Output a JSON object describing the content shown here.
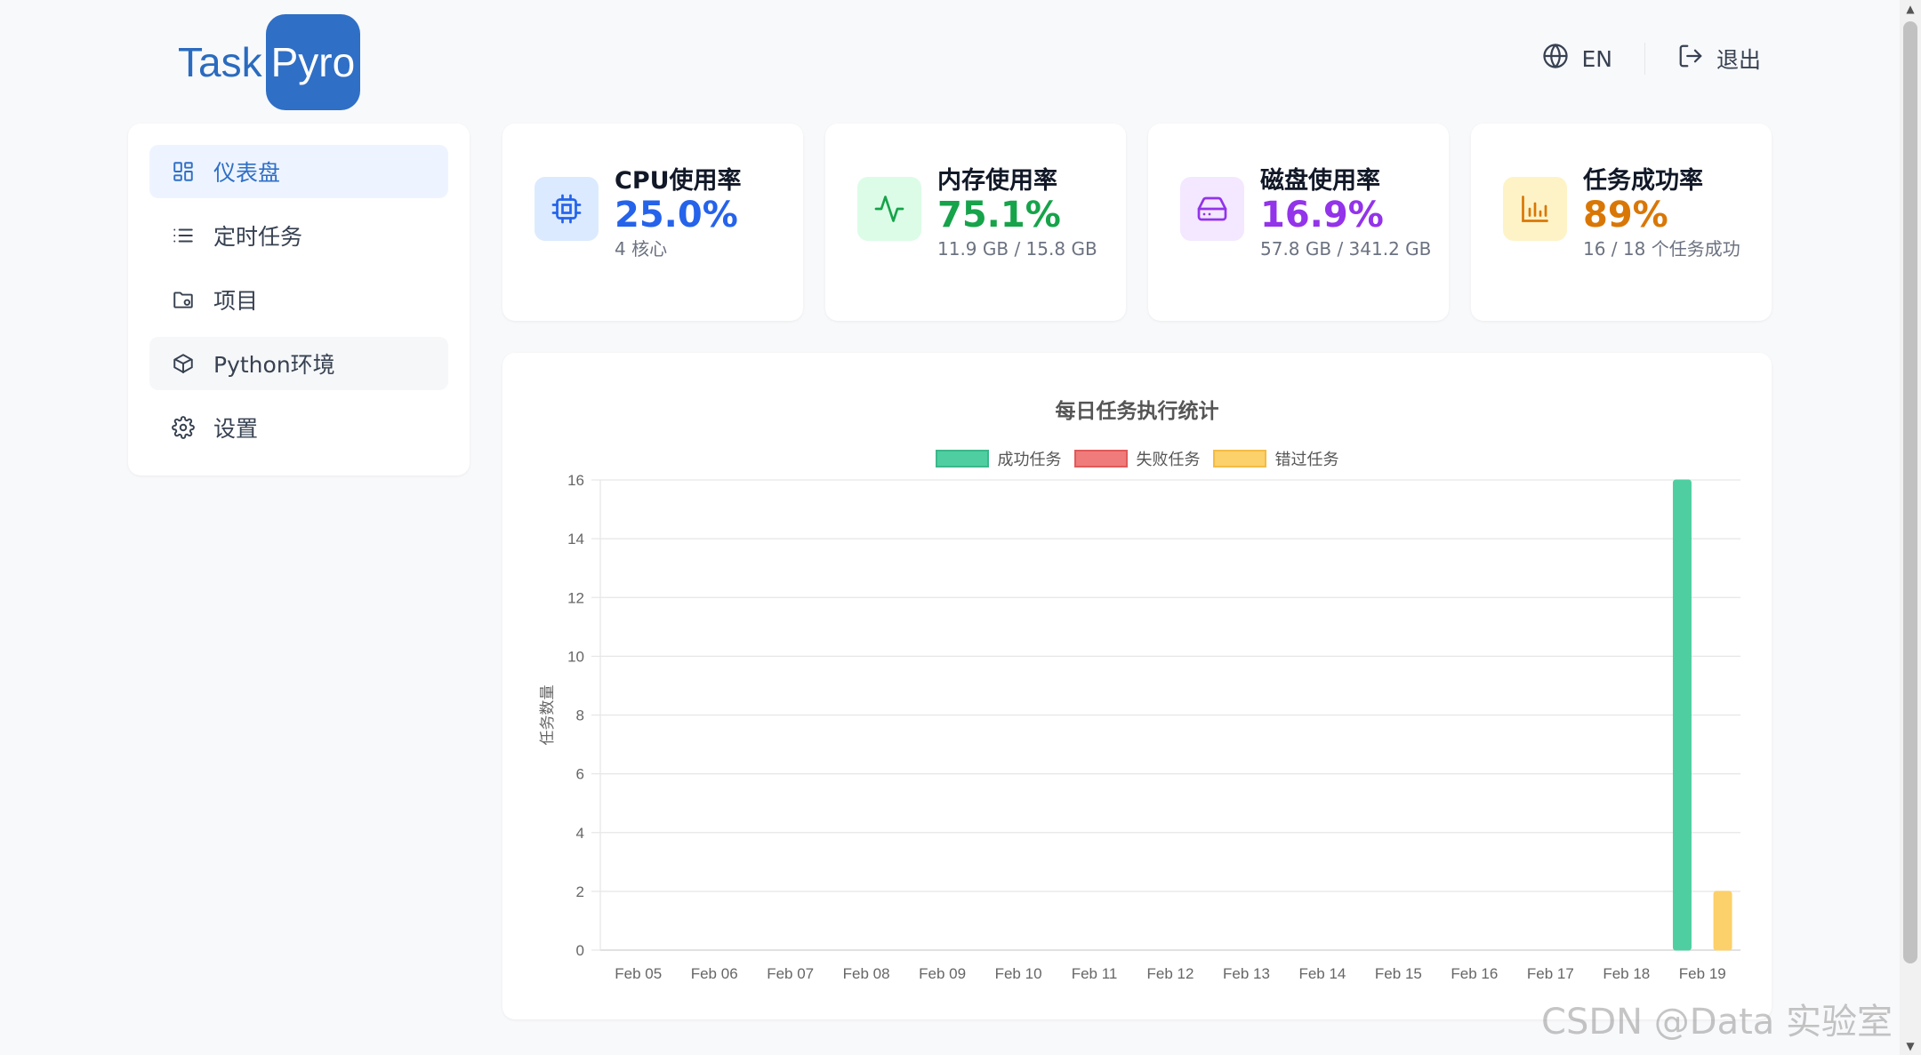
{
  "logo": {
    "part1": "Task",
    "part2": "Pyro"
  },
  "header": {
    "lang_label": "EN",
    "logout_label": "退出"
  },
  "sidebar": {
    "items": [
      {
        "label": "仪表盘",
        "icon": "dashboard-icon",
        "active": true
      },
      {
        "label": "定时任务",
        "icon": "list-icon"
      },
      {
        "label": "项目",
        "icon": "folder-icon"
      },
      {
        "label": "Python环境",
        "icon": "cube-icon"
      },
      {
        "label": "设置",
        "icon": "gear-icon"
      }
    ]
  },
  "stats": [
    {
      "title": "CPU使用率",
      "value": "25.0%",
      "sub": "4 核心",
      "color": "#2563eb",
      "bg": "#dbeafe",
      "icon": "cpu-icon"
    },
    {
      "title": "内存使用率",
      "value": "75.1%",
      "sub": "11.9 GB / 15.8 GB",
      "color": "#16a34a",
      "bg": "#dcfce7",
      "icon": "activity-icon"
    },
    {
      "title": "磁盘使用率",
      "value": "16.9%",
      "sub": "57.8 GB / 341.2 GB",
      "color": "#9333ea",
      "bg": "#f3e8ff",
      "icon": "hard-drive-icon"
    },
    {
      "title": "任务成功率",
      "value": "89%",
      "sub": "16 / 18 个任务成功",
      "color": "#d97706",
      "bg": "#fef3c7",
      "icon": "bar-chart-icon"
    }
  ],
  "chart_data": {
    "type": "bar",
    "title": "每日任务执行统计",
    "ylabel": "任务数量",
    "xlabel": "",
    "ylim": [
      0,
      16
    ],
    "yticks": [
      0,
      2,
      4,
      6,
      8,
      10,
      12,
      14,
      16
    ],
    "categories": [
      "Feb 05",
      "Feb 06",
      "Feb 07",
      "Feb 08",
      "Feb 09",
      "Feb 10",
      "Feb 11",
      "Feb 12",
      "Feb 13",
      "Feb 14",
      "Feb 15",
      "Feb 16",
      "Feb 17",
      "Feb 18",
      "Feb 19"
    ],
    "series": [
      {
        "name": "成功任务",
        "color": "#4fcfa1",
        "values": [
          0,
          0,
          0,
          0,
          0,
          0,
          0,
          0,
          0,
          0,
          0,
          0,
          0,
          0,
          16
        ]
      },
      {
        "name": "失败任务",
        "color": "#f07b7b",
        "values": [
          0,
          0,
          0,
          0,
          0,
          0,
          0,
          0,
          0,
          0,
          0,
          0,
          0,
          0,
          0
        ]
      },
      {
        "name": "错过任务",
        "color": "#fcd06a",
        "values": [
          0,
          0,
          0,
          0,
          0,
          0,
          0,
          0,
          0,
          0,
          0,
          0,
          0,
          0,
          2
        ]
      }
    ],
    "legend_position": "top",
    "grid": true
  },
  "watermark": "CSDN @Data 实验室"
}
